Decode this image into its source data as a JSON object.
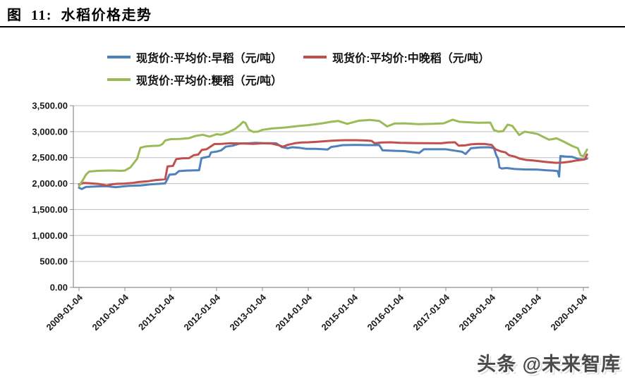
{
  "figure": {
    "title": "图 11: 水稻价格走势"
  },
  "watermark": {
    "text": "头条 @未来智库"
  },
  "chart_data": {
    "type": "line",
    "title": "水稻价格走势",
    "xlabel": "",
    "ylabel": "",
    "grid": true,
    "legend_position": "top",
    "grid_color": "#bdbdbd",
    "axis_color": "#8c8c8c",
    "ylim": [
      0,
      3500
    ],
    "y_ticks": [
      0,
      500,
      1000,
      1500,
      2000,
      2500,
      3000,
      3500
    ],
    "y_tick_labels": [
      "0.00",
      "500.00",
      "1,000.00",
      "1,500.00",
      "2,000.00",
      "2,500.00",
      "3,000.00",
      "3,500.00"
    ],
    "x_ticks": [
      2009,
      2010,
      2011,
      2012,
      2013,
      2014,
      2015,
      2016,
      2017,
      2018,
      2019,
      2020
    ],
    "x_tick_labels": [
      "2009-01-04",
      "2010-01-04",
      "2011-01-04",
      "2012-01-04",
      "2013-01-04",
      "2014-01-04",
      "2015-01-04",
      "2016-01-04",
      "2017-01-04",
      "2018-01-04",
      "2019-01-04",
      "2020-01-04"
    ],
    "series": [
      {
        "name": "现货价:平均价:早稻（元/吨）",
        "color": "#4F81BD",
        "points": [
          [
            2009.0,
            1920
          ],
          [
            2009.06,
            1895
          ],
          [
            2009.15,
            1935
          ],
          [
            2009.4,
            1945
          ],
          [
            2009.6,
            1950
          ],
          [
            2009.8,
            1930
          ],
          [
            2009.95,
            1945
          ],
          [
            2010.1,
            1958
          ],
          [
            2010.35,
            1965
          ],
          [
            2010.55,
            1985
          ],
          [
            2010.75,
            1995
          ],
          [
            2010.88,
            2005
          ],
          [
            2010.93,
            2090
          ],
          [
            2010.97,
            2170
          ],
          [
            2011.1,
            2180
          ],
          [
            2011.18,
            2240
          ],
          [
            2011.35,
            2250
          ],
          [
            2011.62,
            2258
          ],
          [
            2011.67,
            2490
          ],
          [
            2011.78,
            2510
          ],
          [
            2011.84,
            2520
          ],
          [
            2011.88,
            2600
          ],
          [
            2012.0,
            2615
          ],
          [
            2012.1,
            2640
          ],
          [
            2012.2,
            2710
          ],
          [
            2012.35,
            2730
          ],
          [
            2012.5,
            2770
          ],
          [
            2012.7,
            2775
          ],
          [
            2012.85,
            2785
          ],
          [
            2013.0,
            2780
          ],
          [
            2013.3,
            2775
          ],
          [
            2013.42,
            2705
          ],
          [
            2013.55,
            2680
          ],
          [
            2013.65,
            2700
          ],
          [
            2013.8,
            2690
          ],
          [
            2013.95,
            2670
          ],
          [
            2014.15,
            2668
          ],
          [
            2014.3,
            2662
          ],
          [
            2014.42,
            2655
          ],
          [
            2014.5,
            2705
          ],
          [
            2014.62,
            2720
          ],
          [
            2014.75,
            2740
          ],
          [
            2015.0,
            2745
          ],
          [
            2015.3,
            2740
          ],
          [
            2015.55,
            2740
          ],
          [
            2015.62,
            2640
          ],
          [
            2015.9,
            2630
          ],
          [
            2016.1,
            2625
          ],
          [
            2016.42,
            2590
          ],
          [
            2016.52,
            2660
          ],
          [
            2017.0,
            2660
          ],
          [
            2017.18,
            2636
          ],
          [
            2017.35,
            2613
          ],
          [
            2017.43,
            2570
          ],
          [
            2017.55,
            2680
          ],
          [
            2017.75,
            2695
          ],
          [
            2017.95,
            2700
          ],
          [
            2018.05,
            2680
          ],
          [
            2018.1,
            2545
          ],
          [
            2018.14,
            2480
          ],
          [
            2018.17,
            2310
          ],
          [
            2018.22,
            2290
          ],
          [
            2018.32,
            2300
          ],
          [
            2018.5,
            2280
          ],
          [
            2018.7,
            2272
          ],
          [
            2019.0,
            2268
          ],
          [
            2019.2,
            2255
          ],
          [
            2019.35,
            2248
          ],
          [
            2019.44,
            2240
          ],
          [
            2019.47,
            2135
          ],
          [
            2019.5,
            2530
          ],
          [
            2019.62,
            2520
          ],
          [
            2019.75,
            2515
          ],
          [
            2019.9,
            2470
          ],
          [
            2020.0,
            2465
          ],
          [
            2020.08,
            2480
          ]
        ]
      },
      {
        "name": "现货价:平均价:中晚稻（元/吨）",
        "color": "#C0504D",
        "points": [
          [
            2009.0,
            1985
          ],
          [
            2009.1,
            2010
          ],
          [
            2009.25,
            2005
          ],
          [
            2009.45,
            1990
          ],
          [
            2009.6,
            1962
          ],
          [
            2009.72,
            1988
          ],
          [
            2009.85,
            1995
          ],
          [
            2010.0,
            2000
          ],
          [
            2010.15,
            2010
          ],
          [
            2010.3,
            2030
          ],
          [
            2010.5,
            2045
          ],
          [
            2010.65,
            2065
          ],
          [
            2010.8,
            2075
          ],
          [
            2010.88,
            2085
          ],
          [
            2010.93,
            2330
          ],
          [
            2011.05,
            2340
          ],
          [
            2011.12,
            2470
          ],
          [
            2011.25,
            2485
          ],
          [
            2011.4,
            2490
          ],
          [
            2011.5,
            2545
          ],
          [
            2011.6,
            2558
          ],
          [
            2011.68,
            2650
          ],
          [
            2011.78,
            2660
          ],
          [
            2011.85,
            2700
          ],
          [
            2011.95,
            2760
          ],
          [
            2012.1,
            2765
          ],
          [
            2012.3,
            2775
          ],
          [
            2012.6,
            2770
          ],
          [
            2012.8,
            2765
          ],
          [
            2013.0,
            2775
          ],
          [
            2013.2,
            2770
          ],
          [
            2013.35,
            2740
          ],
          [
            2013.45,
            2710
          ],
          [
            2013.55,
            2745
          ],
          [
            2013.7,
            2775
          ],
          [
            2013.85,
            2790
          ],
          [
            2014.0,
            2795
          ],
          [
            2014.2,
            2805
          ],
          [
            2014.4,
            2818
          ],
          [
            2014.6,
            2830
          ],
          [
            2014.8,
            2835
          ],
          [
            2015.05,
            2835
          ],
          [
            2015.25,
            2830
          ],
          [
            2015.38,
            2822
          ],
          [
            2015.45,
            2775
          ],
          [
            2015.6,
            2790
          ],
          [
            2015.8,
            2795
          ],
          [
            2016.0,
            2785
          ],
          [
            2016.3,
            2780
          ],
          [
            2016.6,
            2778
          ],
          [
            2016.9,
            2775
          ],
          [
            2017.05,
            2790
          ],
          [
            2017.2,
            2795
          ],
          [
            2017.28,
            2730
          ],
          [
            2017.42,
            2735
          ],
          [
            2017.55,
            2755
          ],
          [
            2017.7,
            2765
          ],
          [
            2017.85,
            2762
          ],
          [
            2018.0,
            2745
          ],
          [
            2018.08,
            2660
          ],
          [
            2018.2,
            2620
          ],
          [
            2018.3,
            2600
          ],
          [
            2018.38,
            2545
          ],
          [
            2018.5,
            2520
          ],
          [
            2018.62,
            2478
          ],
          [
            2018.75,
            2455
          ],
          [
            2018.9,
            2445
          ],
          [
            2019.05,
            2430
          ],
          [
            2019.2,
            2415
          ],
          [
            2019.4,
            2400
          ],
          [
            2019.55,
            2405
          ],
          [
            2019.7,
            2420
          ],
          [
            2019.85,
            2445
          ],
          [
            2019.95,
            2455
          ],
          [
            2020.03,
            2465
          ],
          [
            2020.08,
            2560
          ]
        ]
      },
      {
        "name": "现货价:平均价:粳稻（元/吨）",
        "color": "#9BBB59",
        "points": [
          [
            2009.0,
            1955
          ],
          [
            2009.08,
            2060
          ],
          [
            2009.15,
            2170
          ],
          [
            2009.22,
            2230
          ],
          [
            2009.4,
            2245
          ],
          [
            2009.7,
            2252
          ],
          [
            2009.9,
            2245
          ],
          [
            2010.0,
            2250
          ],
          [
            2010.12,
            2310
          ],
          [
            2010.2,
            2400
          ],
          [
            2010.27,
            2480
          ],
          [
            2010.31,
            2600
          ],
          [
            2010.34,
            2690
          ],
          [
            2010.45,
            2715
          ],
          [
            2010.6,
            2725
          ],
          [
            2010.75,
            2730
          ],
          [
            2010.82,
            2760
          ],
          [
            2010.88,
            2830
          ],
          [
            2011.0,
            2855
          ],
          [
            2011.2,
            2860
          ],
          [
            2011.4,
            2875
          ],
          [
            2011.55,
            2920
          ],
          [
            2011.7,
            2940
          ],
          [
            2011.85,
            2905
          ],
          [
            2012.0,
            2950
          ],
          [
            2012.1,
            2940
          ],
          [
            2012.25,
            2985
          ],
          [
            2012.4,
            3050
          ],
          [
            2012.5,
            3120
          ],
          [
            2012.58,
            3190
          ],
          [
            2012.63,
            3165
          ],
          [
            2012.7,
            3040
          ],
          [
            2012.8,
            2995
          ],
          [
            2012.9,
            3000
          ],
          [
            2013.0,
            3035
          ],
          [
            2013.2,
            3060
          ],
          [
            2013.5,
            3080
          ],
          [
            2013.8,
            3110
          ],
          [
            2014.0,
            3125
          ],
          [
            2014.3,
            3160
          ],
          [
            2014.5,
            3190
          ],
          [
            2014.65,
            3205
          ],
          [
            2014.85,
            3150
          ],
          [
            2015.1,
            3210
          ],
          [
            2015.35,
            3225
          ],
          [
            2015.55,
            3205
          ],
          [
            2015.72,
            3100
          ],
          [
            2015.88,
            3155
          ],
          [
            2016.1,
            3160
          ],
          [
            2016.4,
            3145
          ],
          [
            2016.7,
            3150
          ],
          [
            2016.95,
            3160
          ],
          [
            2017.15,
            3230
          ],
          [
            2017.3,
            3190
          ],
          [
            2017.5,
            3180
          ],
          [
            2017.7,
            3170
          ],
          [
            2017.97,
            3175
          ],
          [
            2018.05,
            3030
          ],
          [
            2018.15,
            3000
          ],
          [
            2018.25,
            3010
          ],
          [
            2018.35,
            3135
          ],
          [
            2018.45,
            3110
          ],
          [
            2018.6,
            2935
          ],
          [
            2018.72,
            3000
          ],
          [
            2018.85,
            2980
          ],
          [
            2019.0,
            2955
          ],
          [
            2019.25,
            2845
          ],
          [
            2019.42,
            2870
          ],
          [
            2019.6,
            2795
          ],
          [
            2019.75,
            2725
          ],
          [
            2019.88,
            2680
          ],
          [
            2019.94,
            2545
          ],
          [
            2020.0,
            2525
          ],
          [
            2020.08,
            2655
          ]
        ]
      }
    ]
  }
}
